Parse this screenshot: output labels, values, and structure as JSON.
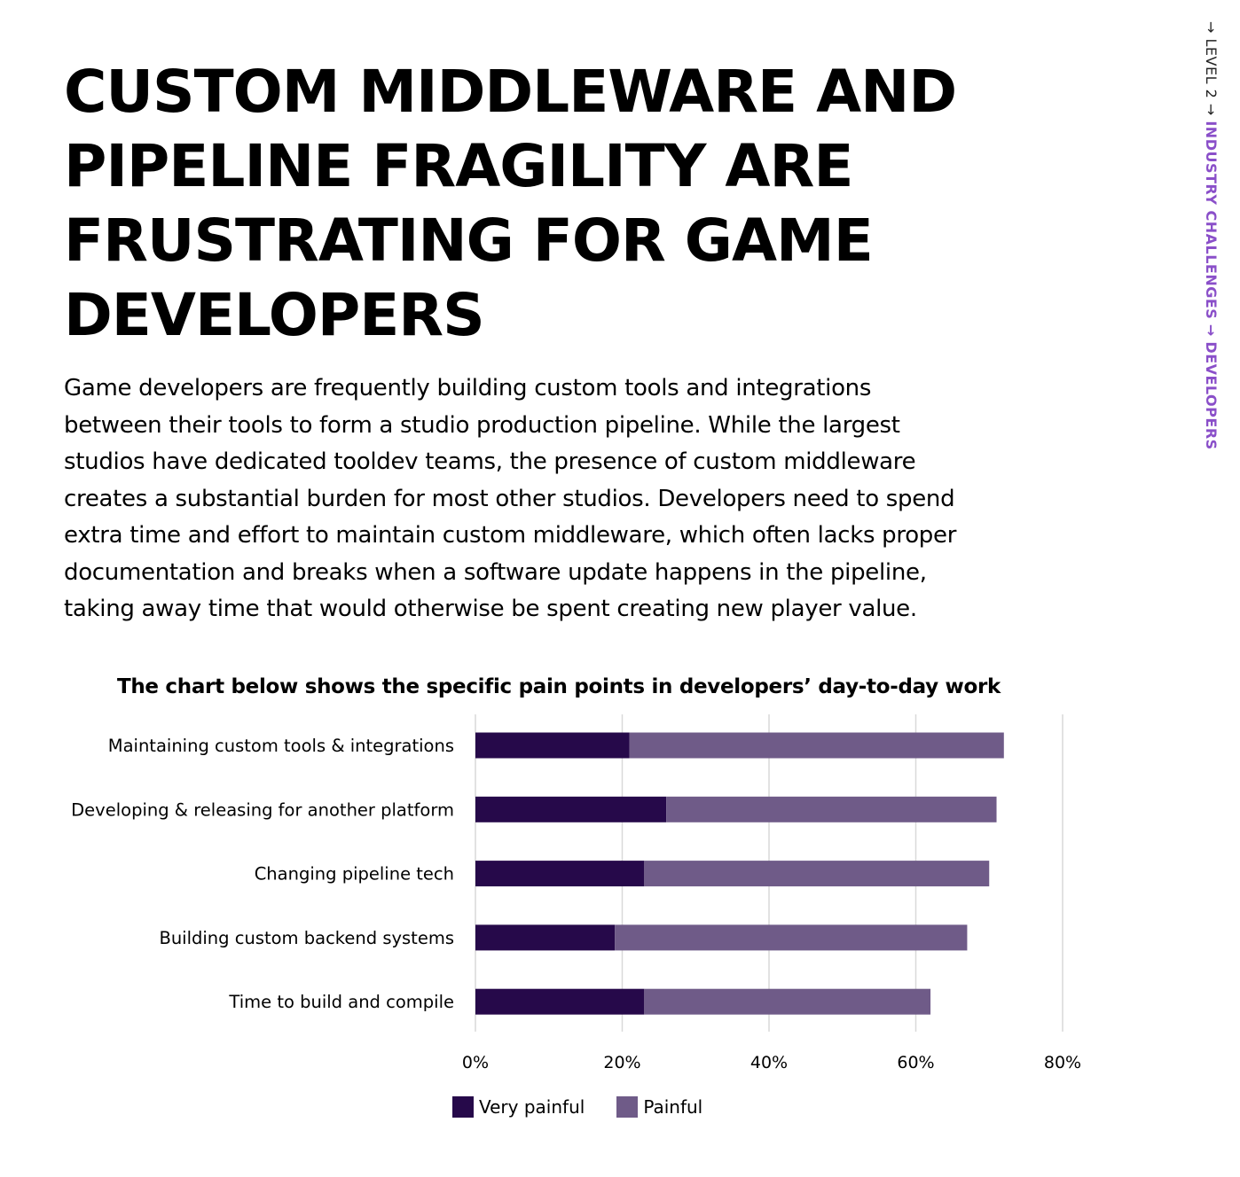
{
  "page": {
    "title_lines": [
      "CUSTOM MIDDLEWARE AND",
      "PIPELINE FRAGILITY ARE",
      "FRUSTRATING FOR GAME",
      "DEVELOPERS"
    ],
    "body_lines": [
      "Game developers are frequently building custom tools and integrations",
      "between their tools to form a studio production pipeline. While the largest",
      "studios have dedicated tooldev teams, the presence of custom middleware",
      "creates a substantial burden for most other studios. Developers need to spend",
      "extra time and effort to maintain custom middleware, which often lacks proper",
      "documentation and breaks when a software update happens in the pipeline,",
      "taking away time that would otherwise be spent creating new player value."
    ]
  },
  "breadcrumb": {
    "level": "→ LEVEL 2 →",
    "section": "INDUSTRY CHALLENGES",
    "separator": "→",
    "page": "DEVELOPERS"
  },
  "colors": {
    "very_painful": "#26094a",
    "painful": "#6f5b88",
    "grid": "#d9d9d9",
    "accent": "#8a4fc9"
  },
  "chart_data": {
    "type": "bar",
    "orientation": "horizontal",
    "stacked": true,
    "title": "The chart below shows the specific pain points in developers’ day-to-day work",
    "categories": [
      "Maintaining custom tools & integrations",
      "Developing & releasing for another platform",
      "Changing pipeline tech",
      "Building custom backend systems",
      "Time to build and compile"
    ],
    "series": [
      {
        "name": "Very painful",
        "values": [
          21,
          26,
          23,
          19,
          23
        ]
      },
      {
        "name": "Painful",
        "values": [
          51,
          45,
          47,
          48,
          39
        ]
      }
    ],
    "xlim": [
      0,
      80
    ],
    "xticks": [
      0,
      20,
      40,
      60,
      80
    ],
    "tick_format": "{v}%",
    "grid": true,
    "legend_position": "bottom"
  }
}
